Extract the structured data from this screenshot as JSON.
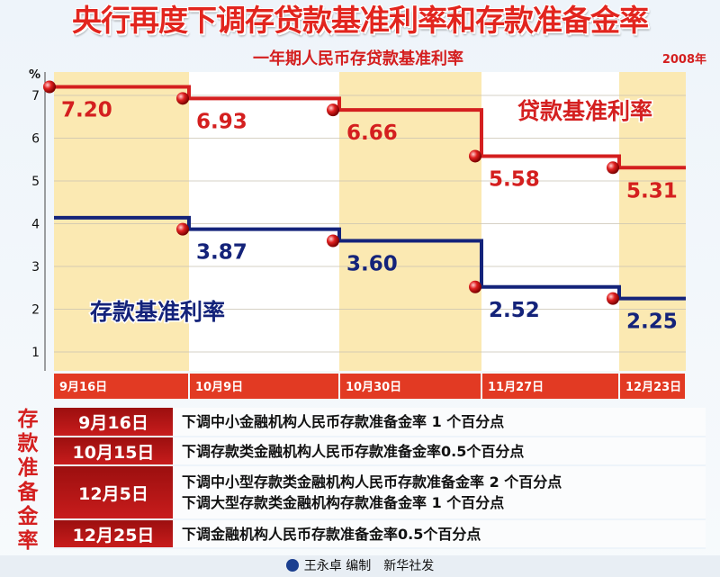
{
  "title": "央行再度下调存贷款基准利率和存款准备金率",
  "chart_data": {
    "type": "line",
    "title": "一年期人民币存贷款基准利率",
    "year_label": "2008年",
    "ylabel": "%",
    "ylim": [
      0,
      8
    ],
    "yticks": [
      1,
      2,
      3,
      4,
      5,
      6,
      7
    ],
    "categories": [
      "9月16日",
      "10月9日",
      "10月30日",
      "11月27日",
      "12月23日"
    ],
    "series": [
      {
        "name": "贷款基准利率",
        "color": "#d41f1f",
        "values": [
          7.2,
          6.93,
          6.66,
          5.58,
          5.31
        ],
        "labels": [
          "7.20",
          "6.93",
          "6.66",
          "5.58",
          "5.31"
        ]
      },
      {
        "name": "存款基准利率",
        "color": "#14237a",
        "values": [
          4.14,
          3.87,
          3.6,
          2.52,
          2.25
        ],
        "labels": [
          "",
          "3.87",
          "3.60",
          "2.52",
          "2.25"
        ]
      }
    ],
    "grid": true,
    "colors": {
      "band": "#fbe9b2",
      "bar": "#e23a23",
      "axis": "#444444"
    }
  },
  "reserve": {
    "heading": "存款准备金率",
    "rows": [
      {
        "date": "9月16日",
        "lines": [
          "下调中小金融机构人民币存款准备金率 1 个百分点"
        ]
      },
      {
        "date": "10月15日",
        "lines": [
          "下调存款类金融机构人民币存款准备金率0.5个百分点"
        ]
      },
      {
        "date": "12月5日",
        "lines": [
          "下调中小型存款类金融机构人民币存款准备金率 2 个百分点",
          "下调大型存款类金融机构存款准备金率 1 个百分点"
        ]
      },
      {
        "date": "12月25日",
        "lines": [
          "下调金融机构人民币存款准备金率0.5个百分点"
        ]
      }
    ]
  },
  "credit": "王永卓 编制　新华社发"
}
